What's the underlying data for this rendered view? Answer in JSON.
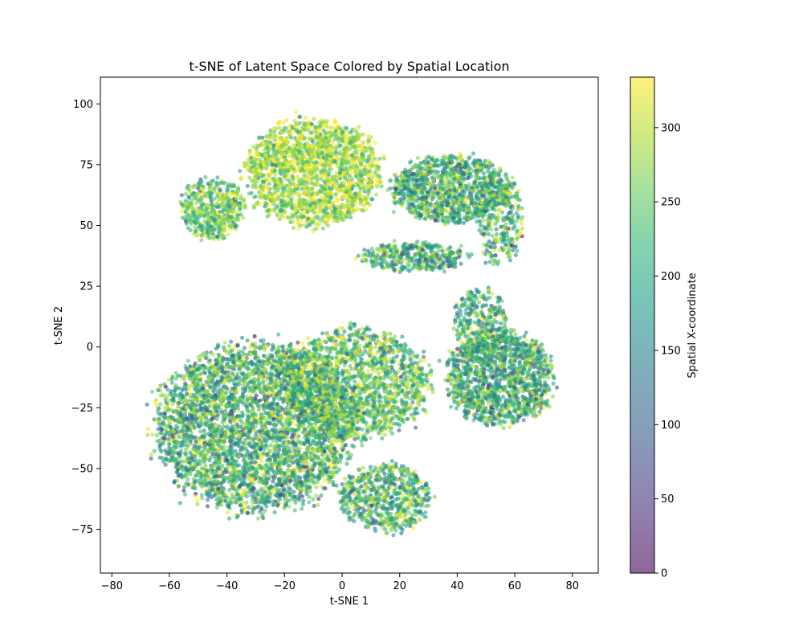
{
  "chart_data": {
    "type": "scatter",
    "title": "t-SNE of Latent Space Colored by Spatial Location",
    "xlabel": "t-SNE 1",
    "ylabel": "t-SNE 2",
    "xlim": [
      -84,
      89
    ],
    "ylim": [
      -93,
      111
    ],
    "x_ticks": [
      -80,
      -60,
      -40,
      -20,
      0,
      20,
      40,
      60,
      80
    ],
    "y_ticks": [
      -75,
      -50,
      -25,
      0,
      25,
      50,
      75,
      100
    ],
    "colorbar": {
      "label": "Spatial X-coordinate",
      "range": [
        0,
        334
      ],
      "ticks": [
        0,
        50,
        100,
        150,
        200,
        250,
        300
      ],
      "colormap": "viridis",
      "alpha": 0.6
    },
    "grid": false,
    "marker_alpha": 0.6,
    "clusters": [
      {
        "cx": -10,
        "cy": 72,
        "sx": 15,
        "sy": 14,
        "n": 1700,
        "colorMean": 285,
        "colorSd": 55
      },
      {
        "cx": 38,
        "cy": 65,
        "sx": 13,
        "sy": 9,
        "n": 1100,
        "colorMean": 215,
        "colorSd": 70
      },
      {
        "cx": 55,
        "cy": 52,
        "sx": 5,
        "sy": 12,
        "n": 300,
        "colorMean": 220,
        "colorSd": 70
      },
      {
        "cx": -45,
        "cy": 57,
        "sx": 7,
        "sy": 8,
        "n": 450,
        "colorMean": 245,
        "colorSd": 60
      },
      {
        "cx": 25,
        "cy": 37,
        "sx": 12,
        "sy": 4,
        "n": 380,
        "colorMean": 205,
        "colorSd": 70
      },
      {
        "cx": -30,
        "cy": -33,
        "sx": 22,
        "sy": 22,
        "n": 3800,
        "colorMean": 215,
        "colorSd": 75
      },
      {
        "cx": 5,
        "cy": -15,
        "sx": 16,
        "sy": 15,
        "n": 1600,
        "colorMean": 235,
        "colorSd": 70
      },
      {
        "cx": 15,
        "cy": -62,
        "sx": 10,
        "sy": 9,
        "n": 650,
        "colorMean": 220,
        "colorSd": 70
      },
      {
        "cx": 55,
        "cy": -13,
        "sx": 12,
        "sy": 12,
        "n": 1400,
        "colorMean": 205,
        "colorSd": 70
      },
      {
        "cx": 48,
        "cy": 10,
        "sx": 6,
        "sy": 9,
        "n": 320,
        "colorMean": 210,
        "colorSd": 70
      }
    ]
  }
}
